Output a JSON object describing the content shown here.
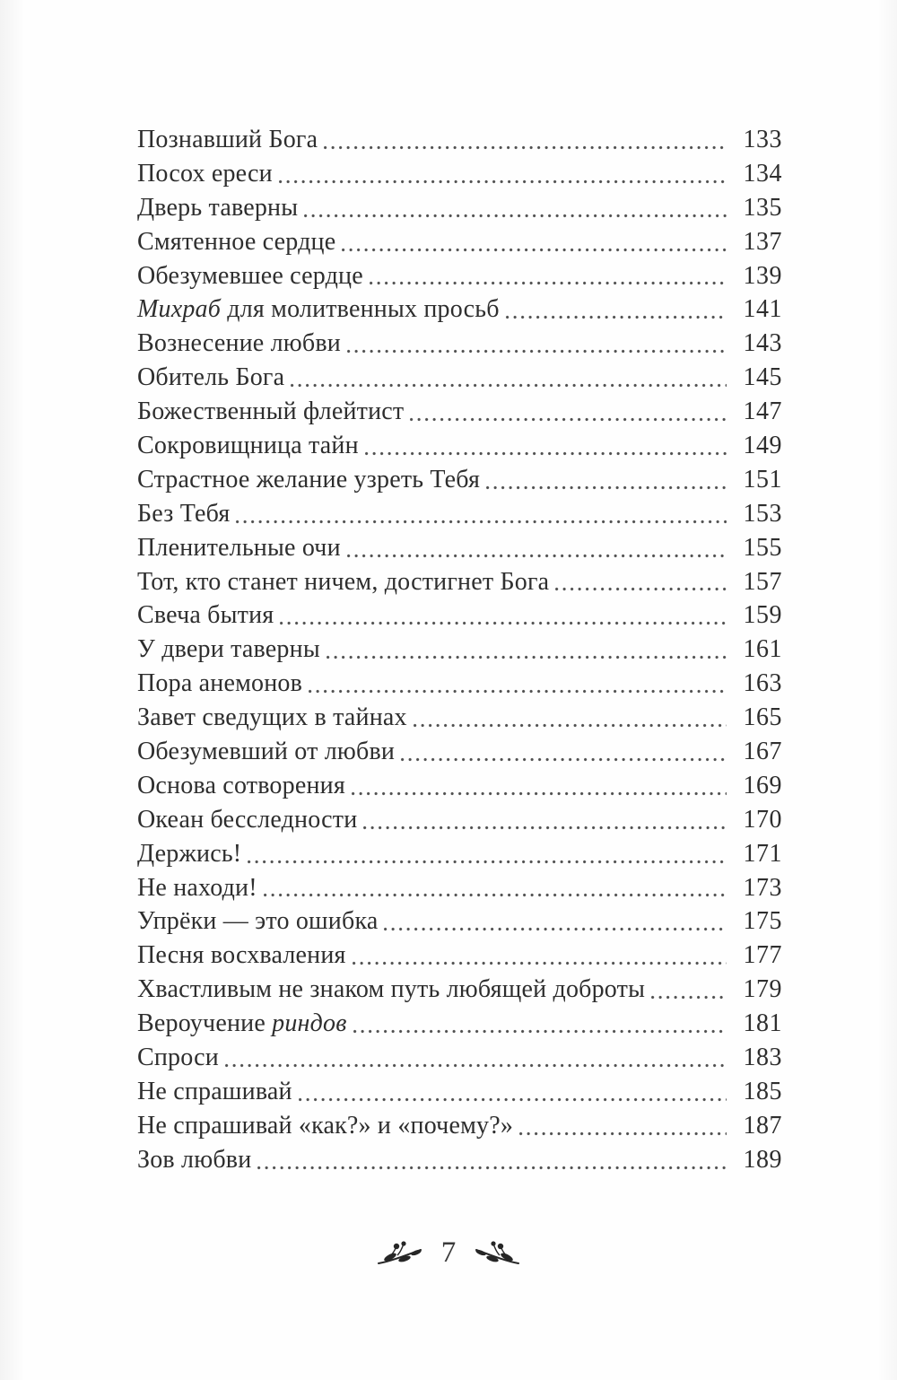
{
  "page": {
    "background": "#fefefe",
    "text_color": "#2e2e2e",
    "leader_dot_color": "#4f4f4f"
  },
  "toc": {
    "entries": [
      {
        "parts": [
          {
            "text": "Познавший Бога",
            "italic": false
          }
        ],
        "page": "133"
      },
      {
        "parts": [
          {
            "text": "Посох ереси",
            "italic": false
          }
        ],
        "page": "134"
      },
      {
        "parts": [
          {
            "text": "Дверь таверны",
            "italic": false
          }
        ],
        "page": "135"
      },
      {
        "parts": [
          {
            "text": "Смятенное сердце",
            "italic": false
          }
        ],
        "page": "137"
      },
      {
        "parts": [
          {
            "text": "Обезумевшее сердце",
            "italic": false
          }
        ],
        "page": "139"
      },
      {
        "parts": [
          {
            "text": "Михраб",
            "italic": true
          },
          {
            "text": " для молитвенных просьб",
            "italic": false
          }
        ],
        "page": "141"
      },
      {
        "parts": [
          {
            "text": "Вознесение любви",
            "italic": false
          }
        ],
        "page": "143"
      },
      {
        "parts": [
          {
            "text": "Обитель Бога",
            "italic": false
          }
        ],
        "page": "145"
      },
      {
        "parts": [
          {
            "text": "Божественный флейтист",
            "italic": false
          }
        ],
        "page": "147"
      },
      {
        "parts": [
          {
            "text": "Сокровищница тайн",
            "italic": false
          }
        ],
        "page": "149"
      },
      {
        "parts": [
          {
            "text": "Страстное желание узреть Тебя",
            "italic": false
          }
        ],
        "page": "151"
      },
      {
        "parts": [
          {
            "text": "Без Тебя",
            "italic": false
          }
        ],
        "page": "153"
      },
      {
        "parts": [
          {
            "text": "Пленительные очи",
            "italic": false
          }
        ],
        "page": "155"
      },
      {
        "parts": [
          {
            "text": "Тот, кто станет ничем, достигнет Бога",
            "italic": false
          }
        ],
        "page": "157"
      },
      {
        "parts": [
          {
            "text": "Свеча бытия",
            "italic": false
          }
        ],
        "page": "159"
      },
      {
        "parts": [
          {
            "text": "У двери таверны",
            "italic": false
          }
        ],
        "page": "161"
      },
      {
        "parts": [
          {
            "text": "Пора анемонов",
            "italic": false
          }
        ],
        "page": "163"
      },
      {
        "parts": [
          {
            "text": "Завет сведущих в тайнах",
            "italic": false
          }
        ],
        "page": "165"
      },
      {
        "parts": [
          {
            "text": "Обезумевший от любви",
            "italic": false
          }
        ],
        "page": "167"
      },
      {
        "parts": [
          {
            "text": "Основа сотворения",
            "italic": false
          }
        ],
        "page": "169"
      },
      {
        "parts": [
          {
            "text": "Океан бесследности",
            "italic": false
          }
        ],
        "page": "170"
      },
      {
        "parts": [
          {
            "text": "Держись!",
            "italic": false
          }
        ],
        "page": "171"
      },
      {
        "parts": [
          {
            "text": "Не находи!",
            "italic": false
          }
        ],
        "page": "173"
      },
      {
        "parts": [
          {
            "text": "Упрёки — это ошибка",
            "italic": false
          }
        ],
        "page": "175"
      },
      {
        "parts": [
          {
            "text": "Песня восхваления",
            "italic": false
          }
        ],
        "page": "177"
      },
      {
        "parts": [
          {
            "text": "Хвастливым не знаком путь любящей доброты",
            "italic": false
          }
        ],
        "page": "179"
      },
      {
        "parts": [
          {
            "text": "Вероучение ",
            "italic": false
          },
          {
            "text": "риндов",
            "italic": true
          }
        ],
        "page": "181"
      },
      {
        "parts": [
          {
            "text": "Спроси",
            "italic": false
          }
        ],
        "page": "183"
      },
      {
        "parts": [
          {
            "text": "Не спрашивай",
            "italic": false
          }
        ],
        "page": "185"
      },
      {
        "parts": [
          {
            "text": "Не спрашивай «как?» и «почему?»",
            "italic": false
          }
        ],
        "page": "187"
      },
      {
        "parts": [
          {
            "text": "Зов любви",
            "italic": false
          }
        ],
        "page": "189"
      }
    ]
  },
  "footer": {
    "page_number": "7",
    "left_ornament": "floral-branch-left-icon",
    "right_ornament": "floral-branch-right-icon"
  }
}
